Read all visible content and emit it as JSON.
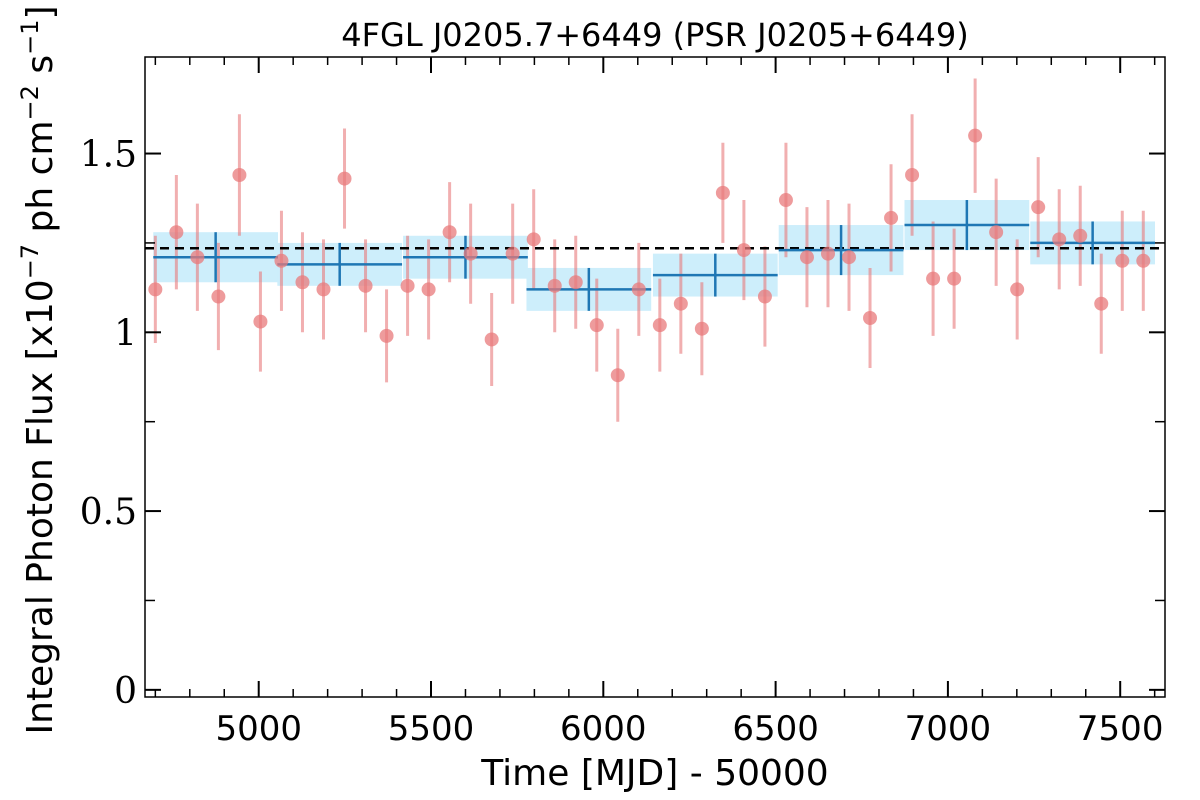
{
  "chart_data": {
    "type": "scatter",
    "title": "4FGL J0205.7+6449 (PSR J0205+6449)",
    "xlabel": "Time [MJD] - 50000",
    "ylabel": "Integral Photon Flux [x10",
    "ylabel_exp1": "−7",
    "ylabel_mid": " ph cm",
    "ylabel_exp2": "−2",
    "ylabel_mid2": " s",
    "ylabel_exp3": "−1",
    "ylabel_end": "]",
    "xlim": [
      4670,
      7630
    ],
    "ylim": [
      -0.02,
      1.77
    ],
    "x_ticks": [
      5000,
      5500,
      6000,
      6500,
      7000,
      7500
    ],
    "x_tick_labels": [
      "5000",
      "5500",
      "6000",
      "6500",
      "7000",
      "7500"
    ],
    "y_ticks": [
      0,
      0.5,
      1,
      1.5
    ],
    "y_tick_labels": [
      "0",
      "0.5",
      "1",
      "1.5"
    ],
    "y_minor_ticks": [
      0.25,
      0.75,
      1.25
    ],
    "x_minor_step": 100,
    "grid": false,
    "mean_flux": 1.235,
    "colors": {
      "points": "#e8797b",
      "bins": "#1f77b4",
      "bin_band": "#cdeefb",
      "mean_line": "#000000"
    },
    "series": [
      {
        "kind": "points",
        "x": [
          4700,
          4761,
          4822,
          4883,
          4944,
          5005,
          5066,
          5127,
          5188,
          5249,
          5310,
          5371,
          5432,
          5493,
          5554,
          5615,
          5676,
          5737,
          5798,
          5859,
          5920,
          5981,
          6042,
          6103,
          6164,
          6225,
          6286,
          6347,
          6408,
          6469,
          6530,
          6591,
          6652,
          6713,
          6774,
          6835,
          6896,
          6957,
          7018,
          7079,
          7140,
          7201,
          7262,
          7323,
          7384,
          7445,
          7506,
          7567
        ],
        "y": [
          1.12,
          1.28,
          1.21,
          1.1,
          1.44,
          1.03,
          1.2,
          1.14,
          1.12,
          1.43,
          1.13,
          0.99,
          1.13,
          1.12,
          1.28,
          1.22,
          0.98,
          1.22,
          1.26,
          1.13,
          1.14,
          1.02,
          0.88,
          1.12,
          1.02,
          1.08,
          1.01,
          1.39,
          1.23,
          1.1,
          1.37,
          1.21,
          1.22,
          1.21,
          1.04,
          1.32,
          1.44,
          1.15,
          1.15,
          1.55,
          1.28,
          1.12,
          1.35,
          1.26,
          1.27,
          1.08,
          1.2,
          1.2
        ],
        "yerr": [
          0.15,
          0.16,
          0.15,
          0.15,
          0.17,
          0.14,
          0.14,
          0.14,
          0.14,
          0.14,
          0.13,
          0.13,
          0.14,
          0.14,
          0.14,
          0.14,
          0.13,
          0.14,
          0.14,
          0.13,
          0.13,
          0.13,
          0.13,
          0.13,
          0.13,
          0.14,
          0.13,
          0.14,
          0.14,
          0.14,
          0.16,
          0.14,
          0.15,
          0.15,
          0.14,
          0.15,
          0.17,
          0.16,
          0.14,
          0.16,
          0.15,
          0.14,
          0.14,
          0.14,
          0.14,
          0.14,
          0.14,
          0.14
        ]
      },
      {
        "kind": "bins",
        "x": [
          4875,
          5235,
          5600,
          5958,
          6325,
          6690,
          7055,
          7420
        ],
        "xerr": [
          181,
          181,
          181,
          181,
          181,
          181,
          181,
          181
        ],
        "y": [
          1.21,
          1.19,
          1.21,
          1.12,
          1.16,
          1.23,
          1.3,
          1.25
        ],
        "yerr": [
          0.07,
          0.06,
          0.06,
          0.06,
          0.06,
          0.07,
          0.07,
          0.06
        ]
      }
    ]
  }
}
